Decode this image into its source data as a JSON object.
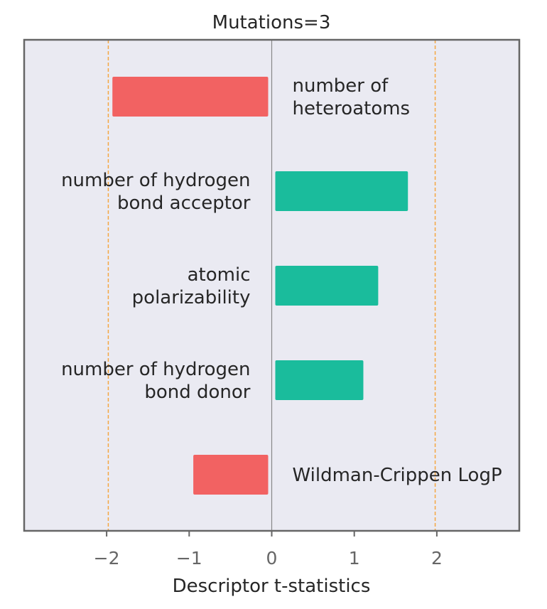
{
  "chart_data": {
    "type": "bar",
    "orientation": "horizontal",
    "title": "Mutations=3",
    "xlabel": "Descriptor t-statistics",
    "ylabel": "",
    "xlim": [
      -3,
      3
    ],
    "xticks": [
      -2,
      -1,
      0,
      1,
      2
    ],
    "xtick_labels": [
      "−2",
      "−1",
      "0",
      "1",
      "2"
    ],
    "reference_lines": [
      -1.98,
      1.98
    ],
    "grid": false,
    "categories": [
      "number of\nheteroatoms",
      "number of hydrogen\nbond acceptor",
      "atomic\npolarizability",
      "number of hydrogen\nbond donor",
      "Wildman-Crippen LogP"
    ],
    "values": [
      -1.93,
      1.65,
      1.29,
      1.11,
      -0.95
    ],
    "colors": {
      "negative": "#f26262",
      "positive": "#1abc9c",
      "reference": "#f5a742",
      "zero_line": "#888888",
      "plot_bg": "#eaeaf2",
      "frame": "#666666",
      "text": "#262626",
      "tick_text": "#666666"
    }
  }
}
